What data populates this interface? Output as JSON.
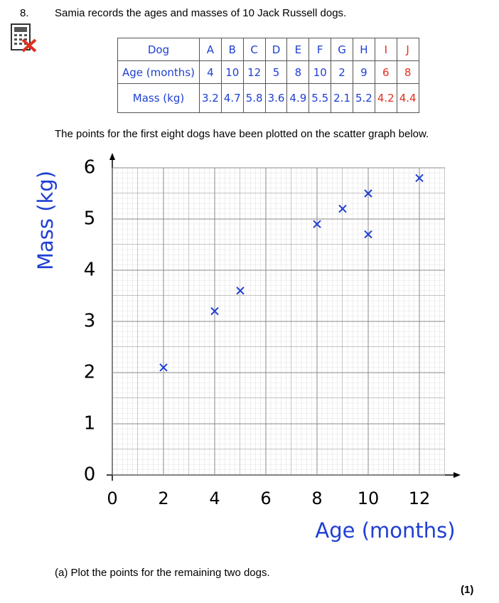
{
  "question": {
    "number": "8.",
    "intro": "Samia records the ages and masses of 10 Jack Russell dogs.",
    "scatter_note": "The points for the first eight dogs have been plotted on the scatter graph below.",
    "part_a": "(a)  Plot the points for the remaining two dogs.",
    "marks": "(1)"
  },
  "table": {
    "header": [
      "Dog",
      "A",
      "B",
      "C",
      "D",
      "E",
      "F",
      "G",
      "H",
      "I",
      "J"
    ],
    "rows": [
      [
        "Age (months)",
        4,
        10,
        12,
        5,
        8,
        10,
        2,
        9,
        6,
        8
      ],
      [
        "Mass (kg)",
        3.2,
        4.7,
        5.8,
        3.6,
        4.9,
        5.5,
        2.1,
        5.2,
        4.2,
        4.4
      ]
    ]
  },
  "chart_data": {
    "type": "scatter",
    "x_label": "Age (months)",
    "y_label": "Mass (kg)",
    "x": [
      4,
      10,
      12,
      5,
      8,
      10,
      2,
      9
    ],
    "values": [
      3.2,
      4.7,
      5.8,
      3.6,
      4.9,
      5.5,
      2.1,
      5.2
    ],
    "color": "#1f3fd2",
    "xlim": [
      0,
      13
    ],
    "ylim": [
      0,
      6
    ],
    "xticks": [
      0,
      2,
      4,
      6,
      8,
      10,
      12
    ],
    "yticks": [
      0,
      1,
      2,
      3,
      4,
      5,
      6
    ],
    "grid": true
  }
}
